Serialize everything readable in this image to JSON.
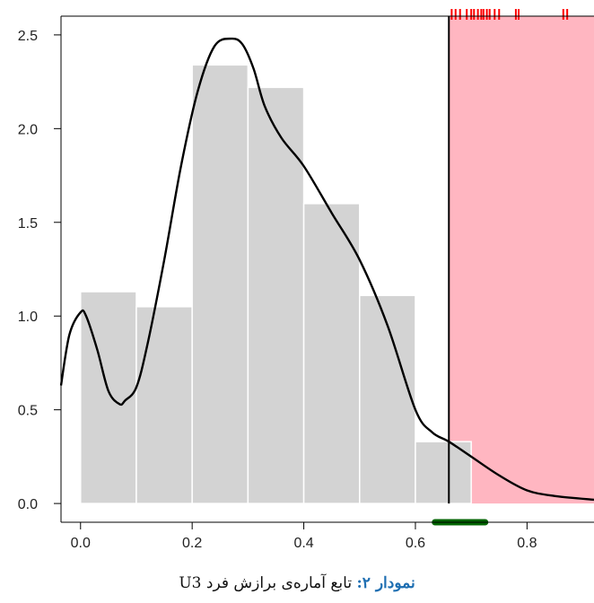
{
  "chart_data": {
    "type": "bar",
    "xlim": [
      -0.035,
      0.92
    ],
    "ylim": [
      -0.1,
      2.6
    ],
    "x_ticks": [
      0.0,
      0.2,
      0.4,
      0.6,
      0.8
    ],
    "y_ticks": [
      0.0,
      0.5,
      1.0,
      1.5,
      2.0,
      2.5
    ],
    "x_tick_labels": [
      "0.0",
      "0.2",
      "0.4",
      "0.6",
      "0.8"
    ],
    "y_tick_labels": [
      "0.0",
      "0.5",
      "1.0",
      "1.5",
      "2.0",
      "2.5"
    ],
    "histogram": {
      "bin_edges": [
        0.0,
        0.1,
        0.2,
        0.3,
        0.4,
        0.5,
        0.6,
        0.7
      ],
      "values": [
        1.13,
        1.05,
        2.34,
        2.22,
        1.6,
        1.11,
        0.33
      ],
      "color": "#d3d3d3"
    },
    "density_curve": {
      "x": [
        -0.035,
        -0.02,
        0.0,
        0.01,
        0.03,
        0.05,
        0.07,
        0.08,
        0.1,
        0.12,
        0.15,
        0.18,
        0.21,
        0.24,
        0.27,
        0.29,
        0.31,
        0.33,
        0.36,
        0.4,
        0.45,
        0.5,
        0.55,
        0.6,
        0.63,
        0.66,
        0.7,
        0.75,
        0.8,
        0.85,
        0.92
      ],
      "y": [
        0.63,
        0.9,
        1.02,
        1.0,
        0.82,
        0.6,
        0.53,
        0.55,
        0.62,
        0.85,
        1.3,
        1.8,
        2.2,
        2.44,
        2.48,
        2.45,
        2.32,
        2.12,
        1.95,
        1.8,
        1.55,
        1.3,
        0.95,
        0.5,
        0.38,
        0.33,
        0.25,
        0.15,
        0.07,
        0.04,
        0.02
      ],
      "color": "#000000"
    },
    "threshold": {
      "x": 0.66,
      "color": "#000000"
    },
    "shaded_region": {
      "x_from": 0.66,
      "x_to": 0.92,
      "color": "#ffb6c1"
    },
    "top_rug": {
      "x": [
        0.665,
        0.672,
        0.68,
        0.692,
        0.7,
        0.705,
        0.712,
        0.718,
        0.722,
        0.728,
        0.733,
        0.742,
        0.75,
        0.78,
        0.785,
        0.865,
        0.872
      ],
      "color": "#ff0000"
    },
    "interval_bar": {
      "x_from": 0.635,
      "x_to": 0.725,
      "color": "#006400"
    }
  },
  "caption": {
    "lead": "نمودار ۲:",
    "text": " تابع آماره‌ی برازش فرد U3"
  }
}
